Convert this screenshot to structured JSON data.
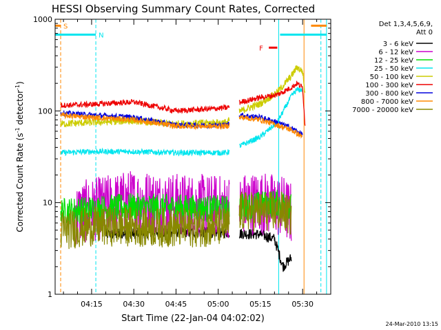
{
  "chart_data": {
    "type": "line",
    "title": "HESSI Observing Summary Count Rates, Corrected",
    "xlabel": "Start Time (22-Jan-04 04:02:02)",
    "ylabel_parts": [
      "Corrected Count Rate (s",
      "-1",
      " detector",
      "-1",
      ")"
    ],
    "yscale": "log",
    "ylim": [
      1,
      1000
    ],
    "xlim": [
      "04:02:02",
      "05:40:00"
    ],
    "yticks": [
      {
        "v": 1,
        "label": "1"
      },
      {
        "v": 10,
        "label": "10"
      },
      {
        "v": 100,
        "label": "100"
      },
      {
        "v": 1000,
        "label": "1000"
      }
    ],
    "xticks": [
      {
        "t": "04:15",
        "label": "04:15"
      },
      {
        "t": "04:30",
        "label": "04:30"
      },
      {
        "t": "04:45",
        "label": "04:45"
      },
      {
        "t": "05:00",
        "label": "05:00"
      },
      {
        "t": "05:15",
        "label": "05:15"
      },
      {
        "t": "05:30",
        "label": "05:30"
      }
    ],
    "legend_title": [
      "Det 1,3,4,5,6,9,",
      "Att 0"
    ],
    "legend_position": "right",
    "footer": "24-Mar-2010 13:15",
    "segments": [
      [
        "04:02:02",
        "05:04:00"
      ],
      [
        "05:07:30",
        "05:38:30"
      ]
    ],
    "series": [
      {
        "name": "3 - 6 keV",
        "color": "#000000",
        "values": [
          {
            "t": "04:20",
            "v": 4.5
          },
          {
            "t": "04:30",
            "v": 4.6
          },
          {
            "t": "04:45",
            "v": 4.8
          },
          {
            "t": "05:03",
            "v": 4.7
          },
          {
            "t": "05:08",
            "v": 4.6
          },
          {
            "t": "05:15",
            "v": 4.5
          },
          {
            "t": "05:20",
            "v": 4.0
          },
          {
            "t": "05:23",
            "v": 2.0
          },
          {
            "t": "05:26",
            "v": 2.5
          }
        ]
      },
      {
        "name": "6 - 12 keV",
        "color": "#cc00cc",
        "values": [
          {
            "t": "04:09",
            "v": 7.5
          },
          {
            "t": "04:20",
            "v": 9.0
          },
          {
            "t": "04:30",
            "v": 10.5
          },
          {
            "t": "04:45",
            "v": 9.5
          },
          {
            "t": "05:03",
            "v": 9.0
          },
          {
            "t": "05:08",
            "v": 9.5
          },
          {
            "t": "05:15",
            "v": 10.0
          },
          {
            "t": "05:23",
            "v": 9.0
          },
          {
            "t": "05:26",
            "v": 7.5
          }
        ]
      },
      {
        "name": "12 - 25 keV",
        "color": "#00dd00",
        "values": [
          {
            "t": "04:04",
            "v": 8.0
          },
          {
            "t": "04:15",
            "v": 8.5
          },
          {
            "t": "04:30",
            "v": 9.0
          },
          {
            "t": "04:45",
            "v": 8.8
          },
          {
            "t": "05:03",
            "v": 8.5
          },
          {
            "t": "05:08",
            "v": 9.0
          },
          {
            "t": "05:15",
            "v": 9.5
          },
          {
            "t": "05:23",
            "v": 10.0
          },
          {
            "t": "05:26",
            "v": 9.0
          }
        ]
      },
      {
        "name": "25 - 50 keV",
        "color": "#00e5ee",
        "values": [
          {
            "t": "04:04",
            "v": 35
          },
          {
            "t": "04:15",
            "v": 36
          },
          {
            "t": "04:30",
            "v": 36
          },
          {
            "t": "04:45",
            "v": 35
          },
          {
            "t": "05:03",
            "v": 35
          },
          {
            "t": "05:08",
            "v": 42
          },
          {
            "t": "05:15",
            "v": 52
          },
          {
            "t": "05:21",
            "v": 75
          },
          {
            "t": "05:26",
            "v": 145
          },
          {
            "t": "05:28",
            "v": 170
          },
          {
            "t": "05:30",
            "v": 170
          }
        ]
      },
      {
        "name": "50 - 100 keV",
        "color": "#cccc00",
        "values": [
          {
            "t": "04:04",
            "v": 72
          },
          {
            "t": "04:15",
            "v": 75
          },
          {
            "t": "04:30",
            "v": 78
          },
          {
            "t": "04:45",
            "v": 72
          },
          {
            "t": "05:03",
            "v": 75
          },
          {
            "t": "05:08",
            "v": 100
          },
          {
            "t": "05:15",
            "v": 120
          },
          {
            "t": "05:21",
            "v": 160
          },
          {
            "t": "05:26",
            "v": 240
          },
          {
            "t": "05:28",
            "v": 300
          },
          {
            "t": "05:30",
            "v": 270
          },
          {
            "t": "05:31",
            "v": 140
          }
        ]
      },
      {
        "name": "100 - 300 keV",
        "color": "#ee0000",
        "values": [
          {
            "t": "04:04",
            "v": 115
          },
          {
            "t": "04:15",
            "v": 118
          },
          {
            "t": "04:30",
            "v": 125
          },
          {
            "t": "04:45",
            "v": 100
          },
          {
            "t": "05:03",
            "v": 108
          },
          {
            "t": "05:08",
            "v": 125
          },
          {
            "t": "05:15",
            "v": 140
          },
          {
            "t": "05:21",
            "v": 150
          },
          {
            "t": "05:26",
            "v": 180
          },
          {
            "t": "05:28",
            "v": 200
          },
          {
            "t": "05:30",
            "v": 180
          },
          {
            "t": "05:31",
            "v": 60
          }
        ]
      },
      {
        "name": "300 - 800 keV",
        "color": "#0000dd",
        "values": [
          {
            "t": "04:04",
            "v": 95
          },
          {
            "t": "04:15",
            "v": 90
          },
          {
            "t": "04:30",
            "v": 85
          },
          {
            "t": "04:45",
            "v": 70
          },
          {
            "t": "05:03",
            "v": 70
          },
          {
            "t": "05:08",
            "v": 90
          },
          {
            "t": "05:15",
            "v": 85
          },
          {
            "t": "05:21",
            "v": 75
          },
          {
            "t": "05:26",
            "v": 65
          },
          {
            "t": "05:30",
            "v": 55
          }
        ]
      },
      {
        "name": "800 - 7000 keV",
        "color": "#ff8800",
        "values": [
          {
            "t": "04:04",
            "v": 90
          },
          {
            "t": "04:15",
            "v": 85
          },
          {
            "t": "04:30",
            "v": 80
          },
          {
            "t": "04:45",
            "v": 68
          },
          {
            "t": "05:03",
            "v": 68
          },
          {
            "t": "05:08",
            "v": 85
          },
          {
            "t": "05:15",
            "v": 80
          },
          {
            "t": "05:21",
            "v": 70
          },
          {
            "t": "05:26",
            "v": 62
          },
          {
            "t": "05:30",
            "v": 52
          }
        ]
      },
      {
        "name": "7000 - 20000 keV",
        "color": "#888800",
        "values": [
          {
            "t": "04:04",
            "v": 5.0
          },
          {
            "t": "04:15",
            "v": 5.5
          },
          {
            "t": "04:30",
            "v": 5.5
          },
          {
            "t": "04:45",
            "v": 5.3
          },
          {
            "t": "05:03",
            "v": 5.5
          },
          {
            "t": "05:08",
            "v": 8.0
          },
          {
            "t": "05:15",
            "v": 8.0
          },
          {
            "t": "05:23",
            "v": 8.0
          },
          {
            "t": "05:26",
            "v": 7.0
          }
        ]
      }
    ],
    "annotations": [
      {
        "label": "S",
        "color": "#ff8800",
        "t_start": "04:02:02",
        "t_end": "04:04:00",
        "v": 850
      },
      {
        "label": "N",
        "color": "#00e5ee",
        "t_start": "04:02:02",
        "t_end": "04:16:30",
        "v": 680
      },
      {
        "label": "F",
        "color": "#ee0000",
        "t_start": "05:18:00",
        "t_end": "05:21:00",
        "v": 490
      },
      {
        "label": "",
        "color": "#00e5ee",
        "t_start": "05:22:00",
        "t_end": "05:38:30",
        "v": 680
      },
      {
        "label": "",
        "color": "#ff8800",
        "t_start": "05:33:00",
        "t_end": "05:38:30",
        "v": 850
      }
    ],
    "markers": [
      {
        "t": "04:04:00",
        "color": "#ff8800",
        "style": "dashed"
      },
      {
        "t": "04:16:30",
        "color": "#00e5ee",
        "style": "dashed"
      },
      {
        "t": "05:21:30",
        "color": "#00e5ee",
        "style": "solid"
      },
      {
        "t": "05:30:30",
        "color": "#ff8800",
        "style": "solid"
      },
      {
        "t": "05:36:30",
        "color": "#00e5ee",
        "style": "dashed"
      },
      {
        "t": "05:38:30",
        "color": "#00e5ee",
        "style": "solid"
      }
    ]
  }
}
